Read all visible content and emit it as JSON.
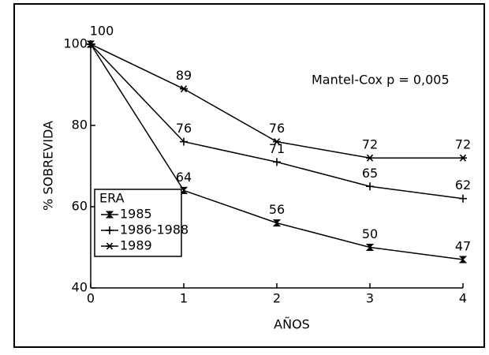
{
  "chart_data": {
    "type": "line",
    "x_label": "AÑOS",
    "y_label": "% SOBREVIDA",
    "annotation": "Mantel-Cox p = 0,005",
    "legend_title": "ERA",
    "legend_position": "lower left",
    "x": [
      0,
      1,
      2,
      3,
      4
    ],
    "xlim": [
      0,
      4
    ],
    "xticks": [
      0,
      1,
      2,
      3,
      4
    ],
    "ylim": [
      40,
      100
    ],
    "yticks": [
      40,
      60,
      80,
      100
    ],
    "grid": false,
    "series": [
      {
        "name": "1985",
        "color": "#000000",
        "marker": "square",
        "values": [
          100,
          64,
          56,
          50,
          47
        ]
      },
      {
        "name": "1986-1988",
        "color": "#000000",
        "marker": "plus",
        "values": [
          100,
          76,
          71,
          65,
          62
        ]
      },
      {
        "name": "1989",
        "color": "#000000",
        "marker": "asterisk",
        "values": [
          100,
          89,
          76,
          72,
          72
        ]
      }
    ]
  }
}
